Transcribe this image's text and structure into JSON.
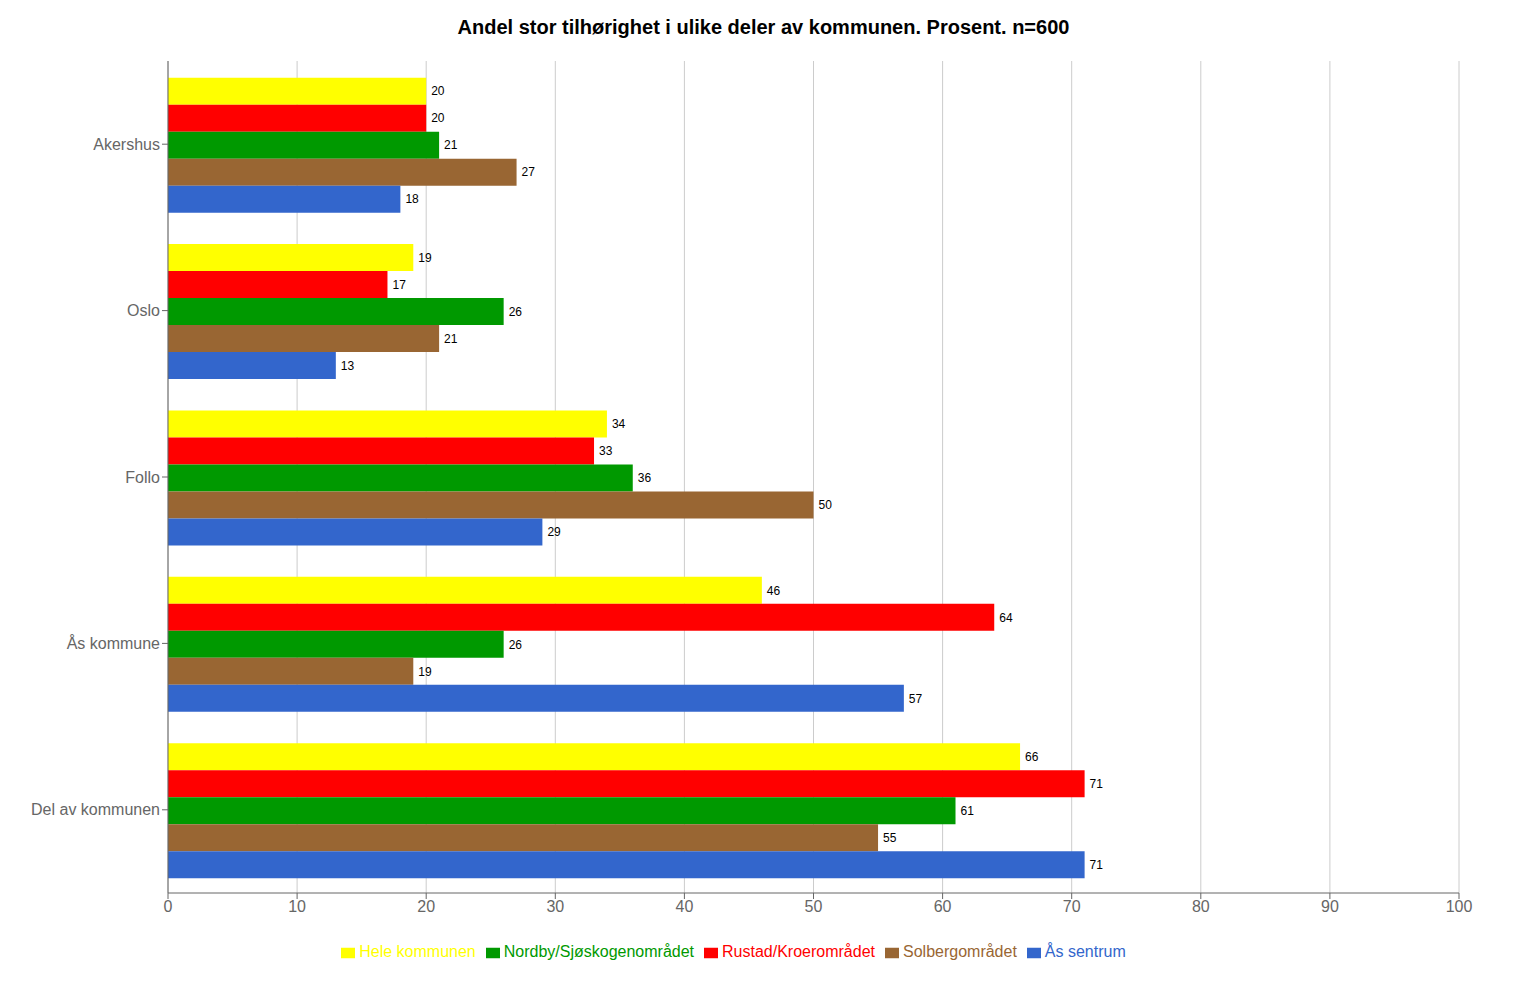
{
  "chart_data": {
    "type": "bar",
    "orientation": "horizontal",
    "title": "Andel stor tilhørighet i ulike deler av kommunen. Prosent. n=600",
    "categories": [
      "Del av kommunen",
      "Ås kommune",
      "Follo",
      "Oslo",
      "Akershus"
    ],
    "series": [
      {
        "name": "Hele kommunen",
        "color": "#ffff00",
        "values": [
          66,
          46,
          34,
          19,
          20
        ]
      },
      {
        "name": "Rustad/Kroerområdet",
        "color": "#ff0000",
        "values": [
          71,
          64,
          33,
          17,
          20
        ]
      },
      {
        "name": "Nordby/Sjøskogenområdet",
        "color": "#009900",
        "values": [
          61,
          26,
          36,
          26,
          21
        ]
      },
      {
        "name": "Solbergområdet",
        "color": "#996633",
        "values": [
          55,
          19,
          50,
          21,
          27
        ]
      },
      {
        "name": "Ås sentrum",
        "color": "#3366cc",
        "values": [
          71,
          57,
          29,
          13,
          18
        ]
      }
    ],
    "xlim": [
      0,
      100
    ],
    "xticks": [
      0,
      10,
      20,
      30,
      40,
      50,
      60,
      70,
      80,
      90,
      100
    ],
    "grid": true,
    "data_labels": true,
    "legend": "bottom"
  }
}
